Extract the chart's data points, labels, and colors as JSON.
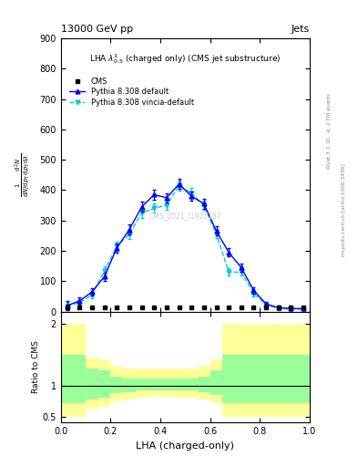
{
  "title_top": "13000 GeV pp",
  "title_right": "Jets",
  "plot_title": "LHA $\\lambda^{1}_{0.5}$ (charged only) (CMS jet substructure)",
  "watermark": "CMS_2021_I1920187",
  "xlabel": "LHA (charged-only)",
  "ylabel_line1": "mathrm d$^2$N",
  "ylabel_ratio": "Ratio to CMS",
  "right_label": "Rivet 3.1.10, $\\geq$ 2.7M events",
  "right_label2": "mcplots.cern.ch [arXiv:1306.3436]",
  "pythia_default_x": [
    0.025,
    0.075,
    0.125,
    0.175,
    0.225,
    0.275,
    0.325,
    0.375,
    0.425,
    0.475,
    0.525,
    0.575,
    0.625,
    0.675,
    0.725,
    0.775,
    0.825,
    0.875,
    0.925,
    0.975
  ],
  "pythia_default_y": [
    20,
    35,
    65,
    115,
    210,
    270,
    345,
    385,
    375,
    420,
    380,
    355,
    265,
    195,
    145,
    70,
    25,
    13,
    10,
    10
  ],
  "pythia_vincia_x": [
    0.025,
    0.075,
    0.125,
    0.175,
    0.225,
    0.275,
    0.325,
    0.375,
    0.425,
    0.475,
    0.525,
    0.575,
    0.625,
    0.675,
    0.725,
    0.775,
    0.825,
    0.875,
    0.925,
    0.975
  ],
  "pythia_vincia_y": [
    18,
    30,
    55,
    135,
    215,
    255,
    325,
    340,
    350,
    415,
    390,
    350,
    255,
    130,
    130,
    60,
    22,
    10,
    8,
    8
  ],
  "pythia_default_err": [
    15,
    12,
    12,
    14,
    15,
    16,
    17,
    16,
    15,
    17,
    16,
    16,
    15,
    14,
    13,
    10,
    8,
    6,
    5,
    5
  ],
  "pythia_vincia_err": [
    14,
    11,
    11,
    15,
    15,
    15,
    16,
    15,
    14,
    16,
    16,
    15,
    14,
    12,
    12,
    9,
    7,
    5,
    4,
    4
  ],
  "ylim_main": [
    0,
    900
  ],
  "color_default": "#0000ff",
  "color_vincia": "#00cccc",
  "color_cms": "#000000",
  "bg_color": "#ffffff",
  "yellow_x": [
    0.0,
    0.05,
    0.1,
    0.15,
    0.2,
    0.25,
    0.3,
    0.35,
    0.4,
    0.45,
    0.5,
    0.55,
    0.6,
    0.65,
    1.0
  ],
  "yellow_lo": [
    0.5,
    0.5,
    0.62,
    0.65,
    0.75,
    0.78,
    0.8,
    0.82,
    0.82,
    0.8,
    0.8,
    0.78,
    0.72,
    0.5,
    0.5
  ],
  "yellow_hi": [
    2.0,
    2.0,
    1.45,
    1.42,
    1.32,
    1.28,
    1.28,
    1.28,
    1.28,
    1.28,
    1.28,
    1.32,
    1.42,
    2.0,
    2.0
  ],
  "green_x": [
    0.0,
    0.05,
    0.1,
    0.15,
    0.2,
    0.25,
    0.3,
    0.35,
    0.4,
    0.45,
    0.5,
    0.55,
    0.6,
    0.65,
    1.0
  ],
  "green_lo": [
    0.72,
    0.72,
    0.78,
    0.8,
    0.88,
    0.9,
    0.92,
    0.93,
    0.93,
    0.92,
    0.92,
    0.9,
    0.85,
    0.72,
    0.72
  ],
  "green_hi": [
    1.5,
    1.5,
    1.28,
    1.25,
    1.15,
    1.12,
    1.12,
    1.12,
    1.12,
    1.12,
    1.12,
    1.15,
    1.25,
    1.5,
    1.5
  ]
}
